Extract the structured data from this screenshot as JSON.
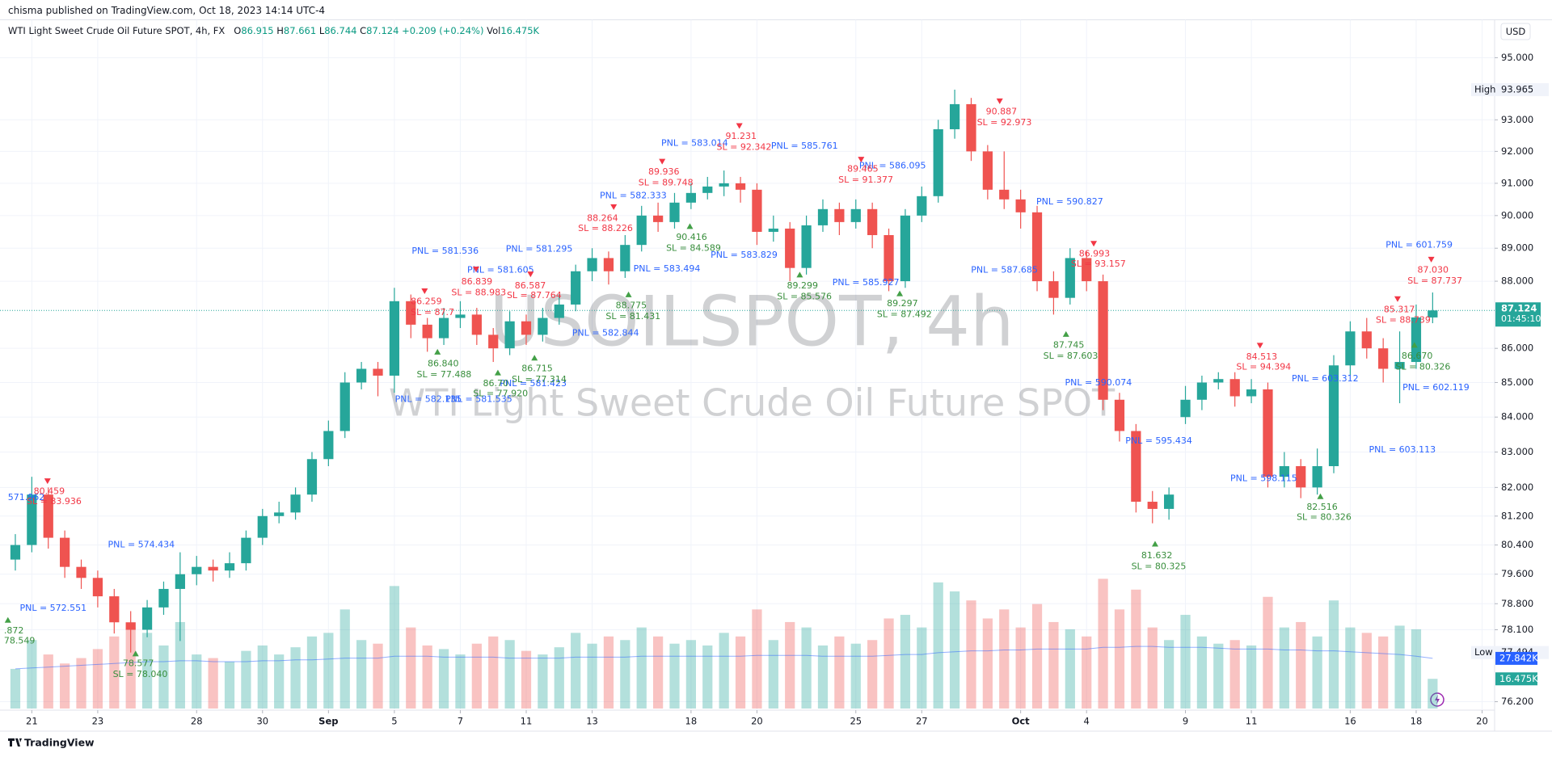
{
  "header": {
    "publisher": "chisma published on TradingView.com, Oct 18, 2023 14:14 UTC-4",
    "currency": "USD",
    "footer": "TradingView"
  },
  "legend": {
    "symbol": "WTI Light Sweet Crude Oil Future SPOT, 4h, FX",
    "o": "O",
    "h": "H",
    "l": "L",
    "c": "C",
    "change": "+0.209 (+0.24%)",
    "vol": "Vol",
    "vol_value": "16.475K"
  },
  "chart_data": {
    "type": "candlestick",
    "log": true,
    "grid": true,
    "watermark": [
      "USOILSPOT, 4h",
      "WTI Light Sweet Crude Oil Future SPOT"
    ],
    "up_color": "#26a69a",
    "down_color": "#ef5350",
    "xlim": [
      -0.72,
      44.38
    ],
    "xticks": [
      {
        "value": 0,
        "label": "21"
      },
      {
        "value": 2,
        "label": "23"
      },
      {
        "value": 5,
        "label": "28"
      },
      {
        "value": 7,
        "label": "30"
      },
      {
        "value": 9,
        "label": "Sep"
      },
      {
        "value": 11,
        "label": "5"
      },
      {
        "value": 13,
        "label": "7"
      },
      {
        "value": 15,
        "label": "11"
      },
      {
        "value": 17,
        "label": "13"
      },
      {
        "value": 20,
        "label": "18"
      },
      {
        "value": 22,
        "label": "20"
      },
      {
        "value": 25,
        "label": "25"
      },
      {
        "value": 27,
        "label": "27"
      },
      {
        "value": 30,
        "label": "Oct"
      },
      {
        "value": 32,
        "label": "4"
      },
      {
        "value": 35,
        "label": "9"
      },
      {
        "value": 37,
        "label": "11"
      },
      {
        "value": 40,
        "label": "16"
      },
      {
        "value": 42,
        "label": "18"
      },
      {
        "value": 44,
        "label": "20"
      }
    ],
    "ylim": [
      75.98,
      96.24
    ],
    "yticks": [
      {
        "value": 95,
        "label": "95.000"
      },
      {
        "value": 93,
        "label": "93.000"
      },
      {
        "value": 92,
        "label": "92.000"
      },
      {
        "value": 91,
        "label": "91.000"
      },
      {
        "value": 90,
        "label": "90.000"
      },
      {
        "value": 89,
        "label": "89.000"
      },
      {
        "value": 88,
        "label": "88.000"
      },
      {
        "value": 86,
        "label": "86.000"
      },
      {
        "value": 85,
        "label": "85.000"
      },
      {
        "value": 84,
        "label": "84.000"
      },
      {
        "value": 83,
        "label": "83.000"
      },
      {
        "value": 82,
        "label": "82.000"
      },
      {
        "value": 81.2,
        "label": "81.200"
      },
      {
        "value": 80.4,
        "label": "80.400"
      },
      {
        "value": 79.6,
        "label": "79.600"
      },
      {
        "value": 78.8,
        "label": "78.800"
      },
      {
        "value": 78.1,
        "label": "78.100"
      },
      {
        "value": 76.2,
        "label": "76.200"
      }
    ],
    "x": [
      -0.5,
      0,
      0.5,
      1,
      1.5,
      2,
      2.5,
      3,
      3.5,
      4,
      4.5,
      5,
      5.5,
      6,
      6.5,
      7,
      7.5,
      8,
      8.5,
      9,
      9.5,
      10,
      10.5,
      11,
      11.5,
      12,
      12.5,
      13,
      13.5,
      14,
      14.5,
      15,
      15.5,
      16,
      16.5,
      17,
      17.5,
      18,
      18.5,
      19,
      19.5,
      20,
      20.5,
      21,
      21.5,
      22,
      22.5,
      23,
      23.5,
      24,
      24.5,
      25,
      25.5,
      26,
      26.5,
      27,
      27.5,
      28,
      28.5,
      29,
      29.5,
      30,
      30.5,
      31,
      31.5,
      32,
      32.5,
      33,
      33.5,
      34,
      34.5,
      35,
      35.5,
      36,
      36.5,
      37,
      37.5,
      38,
      38.5,
      39,
      39.5,
      40,
      40.5,
      41,
      41.5,
      42,
      42.5
    ],
    "candles": [
      [
        80.0,
        80.7,
        79.7,
        80.4
      ],
      [
        80.4,
        82.3,
        80.2,
        81.8
      ],
      [
        81.8,
        82.0,
        80.3,
        80.6
      ],
      [
        80.6,
        80.8,
        79.5,
        79.8
      ],
      [
        79.8,
        80.0,
        79.2,
        79.5
      ],
      [
        79.5,
        79.7,
        78.7,
        79.0
      ],
      [
        79.0,
        79.2,
        78.0,
        78.3
      ],
      [
        78.3,
        78.6,
        77.494,
        78.1
      ],
      [
        78.1,
        78.9,
        77.9,
        78.7
      ],
      [
        78.7,
        79.4,
        78.5,
        79.2
      ],
      [
        79.2,
        80.2,
        77.8,
        79.6
      ],
      [
        79.6,
        80.1,
        79.3,
        79.8
      ],
      [
        79.8,
        80.0,
        79.4,
        79.7
      ],
      [
        79.7,
        80.2,
        79.5,
        79.9
      ],
      [
        79.9,
        80.8,
        79.7,
        80.6
      ],
      [
        80.6,
        81.4,
        80.4,
        81.2
      ],
      [
        81.2,
        81.6,
        81.0,
        81.3
      ],
      [
        81.3,
        82.0,
        81.1,
        81.8
      ],
      [
        81.8,
        83.0,
        81.6,
        82.8
      ],
      [
        82.8,
        83.9,
        82.6,
        83.6
      ],
      [
        83.6,
        85.3,
        83.4,
        85.0
      ],
      [
        85.0,
        85.6,
        84.8,
        85.4
      ],
      [
        85.4,
        85.6,
        84.6,
        85.2
      ],
      [
        85.2,
        87.8,
        84.7,
        87.4
      ],
      [
        87.4,
        87.6,
        86.3,
        86.7
      ],
      [
        86.7,
        86.9,
        85.9,
        86.3
      ],
      [
        86.3,
        87.2,
        86.1,
        86.9
      ],
      [
        86.9,
        87.4,
        86.6,
        87.0
      ],
      [
        87.0,
        87.2,
        86.1,
        86.4
      ],
      [
        86.4,
        86.6,
        85.6,
        86.0
      ],
      [
        86.0,
        87.1,
        85.8,
        86.8
      ],
      [
        86.8,
        87.0,
        86.1,
        86.4
      ],
      [
        86.4,
        87.2,
        86.2,
        86.9
      ],
      [
        86.9,
        87.6,
        86.7,
        87.3
      ],
      [
        87.3,
        88.5,
        87.1,
        88.3
      ],
      [
        88.3,
        89.0,
        88.0,
        88.7
      ],
      [
        88.7,
        88.9,
        87.9,
        88.3
      ],
      [
        88.3,
        89.4,
        88.1,
        89.1
      ],
      [
        89.1,
        90.3,
        88.9,
        90.0
      ],
      [
        90.0,
        90.4,
        89.5,
        89.8
      ],
      [
        89.8,
        90.7,
        89.6,
        90.4
      ],
      [
        90.4,
        91.0,
        90.2,
        90.7
      ],
      [
        90.7,
        91.2,
        90.5,
        90.9
      ],
      [
        90.9,
        91.4,
        90.6,
        91.0
      ],
      [
        91.0,
        91.2,
        90.4,
        90.8
      ],
      [
        90.8,
        91.0,
        89.1,
        89.5
      ],
      [
        89.5,
        90.0,
        89.2,
        89.6
      ],
      [
        89.6,
        89.8,
        88.0,
        88.4
      ],
      [
        88.4,
        90.0,
        88.2,
        89.7
      ],
      [
        89.7,
        90.5,
        89.5,
        90.2
      ],
      [
        90.2,
        90.4,
        89.4,
        89.8
      ],
      [
        89.8,
        90.5,
        89.6,
        90.2
      ],
      [
        90.2,
        90.4,
        89.0,
        89.4
      ],
      [
        89.4,
        89.6,
        87.7,
        88.0
      ],
      [
        88.0,
        90.2,
        87.8,
        90.0
      ],
      [
        90.0,
        90.9,
        89.8,
        90.6
      ],
      [
        90.6,
        93.0,
        90.4,
        92.7
      ],
      [
        92.7,
        93.965,
        92.4,
        93.5
      ],
      [
        93.5,
        93.7,
        91.7,
        92.0
      ],
      [
        92.0,
        92.2,
        90.5,
        90.8
      ],
      [
        90.8,
        92.0,
        90.2,
        90.5
      ],
      [
        90.5,
        90.8,
        89.6,
        90.1
      ],
      [
        90.1,
        90.3,
        87.7,
        88.0
      ],
      [
        88.0,
        88.3,
        87.0,
        87.5
      ],
      [
        87.5,
        89.0,
        87.3,
        88.7
      ],
      [
        88.7,
        88.9,
        87.7,
        88.0
      ],
      [
        88.0,
        88.2,
        84.2,
        84.5
      ],
      [
        84.5,
        84.7,
        83.3,
        83.6
      ],
      [
        83.6,
        83.8,
        81.3,
        81.6
      ],
      [
        81.6,
        81.9,
        81.0,
        81.4
      ],
      [
        81.4,
        82.0,
        81.1,
        81.8
      ],
      [
        84.0,
        84.9,
        83.8,
        84.5
      ],
      [
        84.5,
        85.2,
        84.2,
        85.0
      ],
      [
        85.0,
        85.3,
        84.8,
        85.1
      ],
      [
        85.1,
        85.3,
        84.3,
        84.6
      ],
      [
        84.6,
        85.1,
        84.4,
        84.8
      ],
      [
        84.8,
        85.0,
        82.0,
        82.3
      ],
      [
        82.3,
        83.0,
        82.0,
        82.6
      ],
      [
        82.6,
        82.8,
        81.7,
        82.0
      ],
      [
        82.0,
        83.1,
        81.8,
        82.6
      ],
      [
        82.6,
        85.8,
        82.4,
        85.5
      ],
      [
        85.5,
        86.8,
        85.2,
        86.5
      ],
      [
        86.5,
        86.9,
        85.7,
        86.0
      ],
      [
        86.0,
        86.3,
        85.0,
        85.4
      ],
      [
        85.4,
        86.5,
        84.4,
        85.6
      ],
      [
        85.6,
        87.3,
        85.4,
        86.915
      ],
      [
        86.915,
        87.661,
        86.744,
        87.124
      ]
    ],
    "volume_lim": [
      0,
      100
    ],
    "volume": [
      22,
      38,
      30,
      25,
      28,
      33,
      40,
      45,
      42,
      35,
      48,
      30,
      28,
      26,
      32,
      35,
      30,
      34,
      40,
      42,
      55,
      38,
      36,
      68,
      45,
      35,
      33,
      30,
      36,
      40,
      38,
      32,
      30,
      34,
      42,
      36,
      40,
      38,
      45,
      40,
      36,
      38,
      35,
      42,
      40,
      55,
      38,
      48,
      45,
      35,
      40,
      36,
      38,
      50,
      52,
      45,
      70,
      65,
      60,
      50,
      55,
      45,
      58,
      48,
      44,
      40,
      72,
      55,
      66,
      45,
      38,
      52,
      40,
      36,
      38,
      35,
      62,
      45,
      48,
      40,
      60,
      45,
      42,
      40,
      46,
      44,
      16.475
    ],
    "volume_ma": [
      22,
      22.5,
      23,
      23.5,
      24,
      24.5,
      25,
      25.5,
      26,
      26,
      26.5,
      26.5,
      26,
      26,
      26,
      26.5,
      26.5,
      27,
      27,
      27.5,
      28,
      28,
      28,
      29,
      29,
      29,
      28.5,
      28.5,
      28.5,
      28.5,
      28,
      28,
      28,
      28,
      28.5,
      28.5,
      28.5,
      28.5,
      29,
      29,
      29,
      29,
      29,
      29,
      29,
      29.5,
      29.5,
      29.5,
      29.5,
      29,
      29,
      29,
      29,
      29.5,
      30,
      30,
      31,
      31.5,
      32,
      32,
      32.5,
      32.5,
      33,
      33,
      33,
      33,
      34,
      34,
      34.5,
      34.5,
      34,
      34,
      34,
      33.5,
      33,
      33,
      33,
      32.5,
      32.5,
      32,
      32,
      31.5,
      31,
      30.5,
      30,
      29,
      27.842
    ],
    "volume_ma_label": "27.842K",
    "volume_label": "16.475K",
    "high_text": "High",
    "high": 93.965,
    "low_text": "Low",
    "low": 77.494,
    "countdown": "01:45:10",
    "pnl_labels": [
      "571.962",
      "PNL = 574.434",
      "PNL = 572.551",
      "PNL = 581.536",
      "PNL = 581.295",
      "PNL = 581.605",
      "PNL = 582.333",
      "PNL = 583.014",
      "PNL = 585.761",
      "PNL = 586.095",
      "PNL = 583.494",
      "PNL = 583.829",
      "PNL = 585.927",
      "PNL = 582.844",
      "PNL = 582.135",
      "PNL = 581.535",
      "PNL = 581.423",
      "PNL = 587.685",
      "PNL = 590.827",
      "PNL = 590.074",
      "PNL = 595.434",
      "PNL = 598.115",
      "PNL = 601.759",
      "PNL = 603.312",
      "PNL = 602.119",
      "PNL = 603.113"
    ],
    "sell_signals": [
      {
        "price": "80.459",
        "sl": "SL = 83.936"
      },
      {
        "price": "86.259",
        "sl": "SL = 87.7"
      },
      {
        "price": "86.839",
        "sl": "SL = 88.983"
      },
      {
        "price": "86.587",
        "sl": "SL = 87.764"
      },
      {
        "price": "88.264",
        "sl": "SL = 88.226"
      },
      {
        "price": "89.936",
        "sl": "SL = 89.748"
      },
      {
        "price": "91.231",
        "sl": "SL = 92.342"
      },
      {
        "price": "89.465",
        "sl": "SL = 91.377"
      },
      {
        "price": "90.887",
        "sl": "SL = 92.973"
      },
      {
        "price": "86.993",
        "sl": "SL = 93.157"
      },
      {
        "price": "84.513",
        "sl": "SL = 94.394"
      },
      {
        "price": "87.030",
        "sl": "SL = 87.737"
      },
      {
        "price": "85.317",
        "sl": "SL = 88.739"
      }
    ],
    "buy_signals": [
      {
        "price": ".872",
        "sl": "78.549"
      },
      {
        "price": "78.577",
        "sl": "SL = 78.040"
      },
      {
        "price": "86.840",
        "sl": "SL = 77.488"
      },
      {
        "price": "86.70",
        "sl": "SL = 77.920"
      },
      {
        "price": "86.715",
        "sl": "SL = 77.314"
      },
      {
        "price": "88.775",
        "sl": "SL = 81.431"
      },
      {
        "price": "90.416",
        "sl": "SL = 84.589"
      },
      {
        "price": "89.299",
        "sl": "SL = 85.576"
      },
      {
        "price": "89.297",
        "sl": "SL = 87.492"
      },
      {
        "price": "87.745",
        "sl": "SL = 87.603"
      },
      {
        "price": "81.632",
        "sl": "SL = 80.325"
      },
      {
        "price": "82.516",
        "sl": "SL = 80.326"
      },
      {
        "price": "86.670",
        "sl": "SL = 80.326"
      }
    ]
  }
}
